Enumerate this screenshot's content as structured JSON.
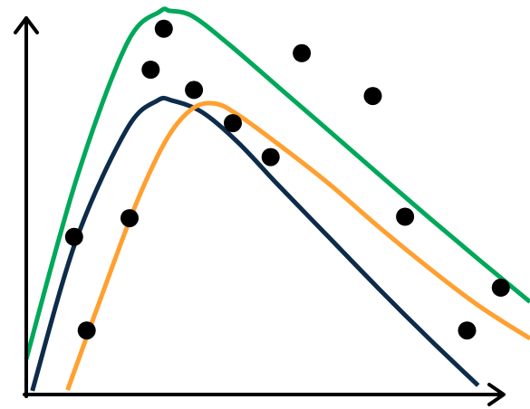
{
  "chart_data": {
    "type": "scatter",
    "title": "",
    "xlabel": "",
    "ylabel": "",
    "xlim": [
      0,
      100
    ],
    "ylim": [
      0,
      100
    ],
    "grid": false,
    "axis_arrows": true,
    "series": [
      {
        "kind": "curve",
        "color": "#00a85a",
        "x": [
          0,
          10,
          20,
          26.5,
          28.5,
          33,
          40,
          50,
          60,
          70,
          80,
          90,
          100
        ],
        "y": [
          8.8,
          56.1,
          91.5,
          99.8,
          100,
          98.6,
          91.5,
          80.1,
          68.7,
          57.2,
          45.8,
          34.7,
          23.8
        ]
      },
      {
        "kind": "curve",
        "color": "#0d2c4a",
        "x": [
          1.2,
          10,
          20,
          26,
          29,
          35,
          42,
          50,
          60,
          70,
          80,
          89.7
        ],
        "y": [
          0.5,
          40.3,
          69.1,
          76.5,
          76.5,
          73.4,
          65.6,
          54.4,
          40.8,
          27.2,
          14.1,
          1.9
        ]
      },
      {
        "kind": "curve",
        "color": "#ffa030",
        "x": [
          8.2,
          15,
          22,
          28,
          33,
          37.5,
          42,
          50,
          60,
          70,
          80,
          90,
          100
        ],
        "y": [
          0.7,
          25.5,
          50.1,
          66.7,
          74.4,
          75.7,
          72.8,
          65.1,
          54.8,
          43.4,
          32.6,
          22.6,
          14.2
        ]
      },
      {
        "kind": "points",
        "color": "#000000",
        "x": [
          9.5,
          12,
          20.5,
          24.7,
          27.3,
          33.3,
          41,
          48.5,
          54.7,
          68.8,
          75.2,
          87.5,
          94.2
        ],
        "y": [
          40.8,
          16.3,
          45.7,
          84.6,
          95.3,
          79.3,
          70.6,
          61.7,
          88.9,
          77.7,
          46.1,
          16.3,
          27.5
        ]
      }
    ]
  }
}
